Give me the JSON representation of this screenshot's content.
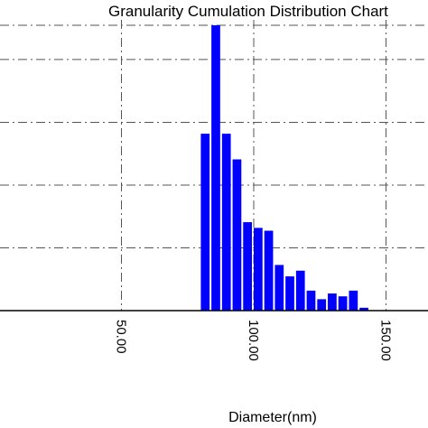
{
  "chart_data": {
    "type": "bar",
    "title": "Granularity Cumulation Distribution  Chart",
    "xlabel": "Diameter(nm)",
    "ylabel": "",
    "xlim": [
      0,
      160
    ],
    "ylim": [
      0,
      100
    ],
    "grid": true,
    "xticks": [
      {
        "value": 50,
        "label": "50.00"
      },
      {
        "value": 100,
        "label": "100.00"
      },
      {
        "value": 150,
        "label": "150.00"
      }
    ],
    "yticks": [
      22,
      44,
      66,
      88
    ],
    "x": [
      80,
      84,
      88,
      92,
      96,
      100,
      104,
      108,
      112,
      116,
      120,
      124,
      128,
      132,
      136,
      140,
      144,
      148,
      152
    ],
    "values": [
      62,
      100,
      62,
      53,
      31,
      29,
      28,
      16,
      12,
      14,
      7,
      4,
      6,
      5,
      7,
      1,
      0,
      0,
      0
    ],
    "bar_color": "#0000ff"
  }
}
